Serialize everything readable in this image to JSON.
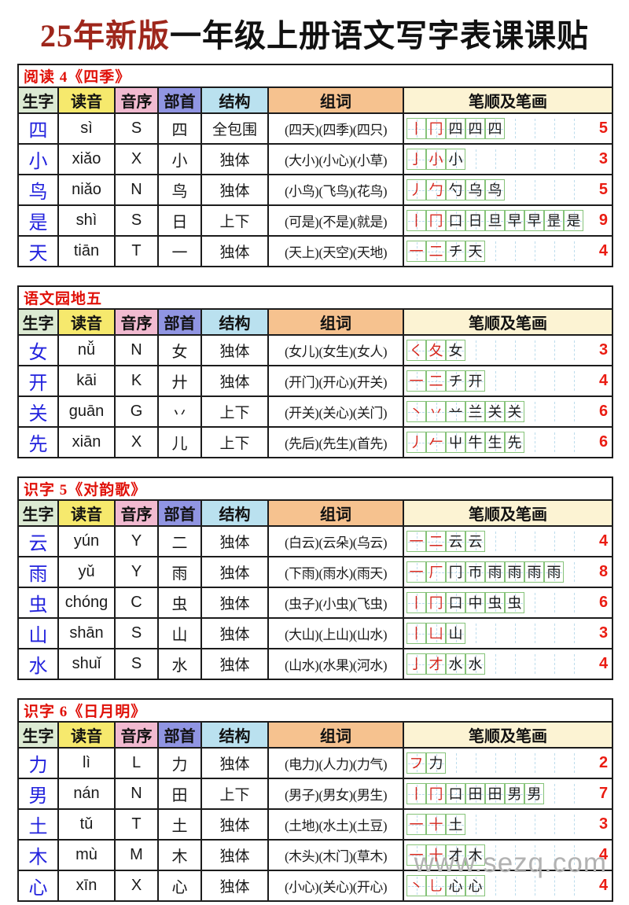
{
  "page": {
    "title": {
      "accent": "25年新版",
      "rest": "一年级上册语文写字表课课贴"
    },
    "watermark": "www.sezq.com"
  },
  "colors": {
    "title_accent": "#9e261b",
    "section_red": "#e01008",
    "char_blue": "#2222dd",
    "stroke_red": "#d6281e",
    "count_red": "#ea1c12",
    "box_green": "#86c379",
    "guide_blue": "#bcdcec",
    "border_dark": "#1c1c1c",
    "watermark_gray": "#b2b2b2",
    "header_bg": [
      "#dcead3",
      "#f6e96d",
      "#f1bad0",
      "#9095e2",
      "#bae1ef",
      "#f6c28f",
      "#fcf3d3"
    ]
  },
  "columns": [
    "生字",
    "读音",
    "音序",
    "部首",
    "结构",
    "组词",
    "笔顺及笔画"
  ],
  "tables": [
    {
      "section": "阅读 4《四季》",
      "rows": [
        {
          "char": "四",
          "pinyin": "sì",
          "initial": "S",
          "radical": "四",
          "structure": "全包围",
          "words": "(四天)(四季)(四只)",
          "stroke_count": 5,
          "strokes": [
            "丨",
            "冂",
            "四",
            "四",
            "四"
          ]
        },
        {
          "char": "小",
          "pinyin": "xiǎo",
          "initial": "X",
          "radical": "小",
          "structure": "独体",
          "words": "(大小)(小心)(小草)",
          "stroke_count": 3,
          "strokes": [
            "亅",
            "小",
            "小"
          ]
        },
        {
          "char": "鸟",
          "pinyin": "niǎo",
          "initial": "N",
          "radical": "鸟",
          "structure": "独体",
          "words": "(小鸟)(飞鸟)(花鸟)",
          "stroke_count": 5,
          "strokes": [
            "丿",
            "勹",
            "勺",
            "乌",
            "鸟"
          ]
        },
        {
          "char": "是",
          "pinyin": "shì",
          "initial": "S",
          "radical": "日",
          "structure": "上下",
          "words": "(可是)(不是)(就是)",
          "stroke_count": 9,
          "strokes": [
            "丨",
            "冂",
            "口",
            "日",
            "旦",
            "早",
            "早",
            "昰",
            "是"
          ]
        },
        {
          "char": "天",
          "pinyin": "tiān",
          "initial": "T",
          "radical": "一",
          "structure": "独体",
          "words": "(天上)(天空)(天地)",
          "stroke_count": 4,
          "strokes": [
            "一",
            "二",
            "チ",
            "天"
          ]
        }
      ]
    },
    {
      "section": "语文园地五",
      "rows": [
        {
          "char": "女",
          "pinyin": "nǚ",
          "initial": "N",
          "radical": "女",
          "structure": "独体",
          "words": "(女儿)(女生)(女人)",
          "stroke_count": 3,
          "strokes": [
            "く",
            "夂",
            "女"
          ]
        },
        {
          "char": "开",
          "pinyin": "kāi",
          "initial": "K",
          "radical": "廾",
          "structure": "独体",
          "words": "(开门)(开心)(开关)",
          "stroke_count": 4,
          "strokes": [
            "一",
            "二",
            "チ",
            "开"
          ]
        },
        {
          "char": "关",
          "pinyin": "guān",
          "initial": "G",
          "radical": "丷",
          "structure": "上下",
          "words": "(开关)(关心)(关门)",
          "stroke_count": 6,
          "strokes": [
            "丶",
            "丷",
            "䒑",
            "兰",
            "关",
            "关"
          ]
        },
        {
          "char": "先",
          "pinyin": "xiān",
          "initial": "X",
          "radical": "儿",
          "structure": "上下",
          "words": "(先后)(先生)(首先)",
          "stroke_count": 6,
          "strokes": [
            "丿",
            "𠂉",
            "屮",
            "牛",
            "生",
            "先"
          ]
        }
      ]
    },
    {
      "section": "识字 5《对韵歌》",
      "rows": [
        {
          "char": "云",
          "pinyin": "yún",
          "initial": "Y",
          "radical": "二",
          "structure": "独体",
          "words": "(白云)(云朵)(乌云)",
          "stroke_count": 4,
          "strokes": [
            "一",
            "二",
            "云",
            "云"
          ]
        },
        {
          "char": "雨",
          "pinyin": "yǔ",
          "initial": "Y",
          "radical": "雨",
          "structure": "独体",
          "words": "(下雨)(雨水)(雨天)",
          "stroke_count": 8,
          "strokes": [
            "一",
            "厂",
            "冂",
            "帀",
            "雨",
            "雨",
            "雨",
            "雨"
          ]
        },
        {
          "char": "虫",
          "pinyin": "chóng",
          "initial": "C",
          "radical": "虫",
          "structure": "独体",
          "words": "(虫子)(小虫)(飞虫)",
          "stroke_count": 6,
          "strokes": [
            "丨",
            "冂",
            "口",
            "中",
            "虫",
            "虫"
          ]
        },
        {
          "char": "山",
          "pinyin": "shān",
          "initial": "S",
          "radical": "山",
          "structure": "独体",
          "words": "(大山)(上山)(山水)",
          "stroke_count": 3,
          "strokes": [
            "丨",
            "凵",
            "山"
          ]
        },
        {
          "char": "水",
          "pinyin": "shuǐ",
          "initial": "S",
          "radical": "水",
          "structure": "独体",
          "words": "(山水)(水果)(河水)",
          "stroke_count": 4,
          "strokes": [
            "亅",
            "才",
            "水",
            "水"
          ]
        }
      ]
    },
    {
      "section": "识字 6《日月明》",
      "rows": [
        {
          "char": "力",
          "pinyin": "lì",
          "initial": "L",
          "radical": "力",
          "structure": "独体",
          "words": "(电力)(人力)(力气)",
          "stroke_count": 2,
          "strokes": [
            "フ",
            "力"
          ]
        },
        {
          "char": "男",
          "pinyin": "nán",
          "initial": "N",
          "radical": "田",
          "structure": "上下",
          "words": "(男子)(男女)(男生)",
          "stroke_count": 7,
          "strokes": [
            "丨",
            "冂",
            "口",
            "田",
            "田",
            "男",
            "男"
          ]
        },
        {
          "char": "土",
          "pinyin": "tǔ",
          "initial": "T",
          "radical": "土",
          "structure": "独体",
          "words": "(土地)(水土)(土豆)",
          "stroke_count": 3,
          "strokes": [
            "一",
            "十",
            "土"
          ]
        },
        {
          "char": "木",
          "pinyin": "mù",
          "initial": "M",
          "radical": "木",
          "structure": "独体",
          "words": "(木头)(木门)(草木)",
          "stroke_count": 4,
          "strokes": [
            "一",
            "十",
            "才",
            "木"
          ]
        },
        {
          "char": "心",
          "pinyin": "xīn",
          "initial": "X",
          "radical": "心",
          "structure": "独体",
          "words": "(小心)(关心)(开心)",
          "stroke_count": 4,
          "strokes": [
            "丶",
            "乚",
            "心",
            "心"
          ]
        }
      ]
    }
  ]
}
